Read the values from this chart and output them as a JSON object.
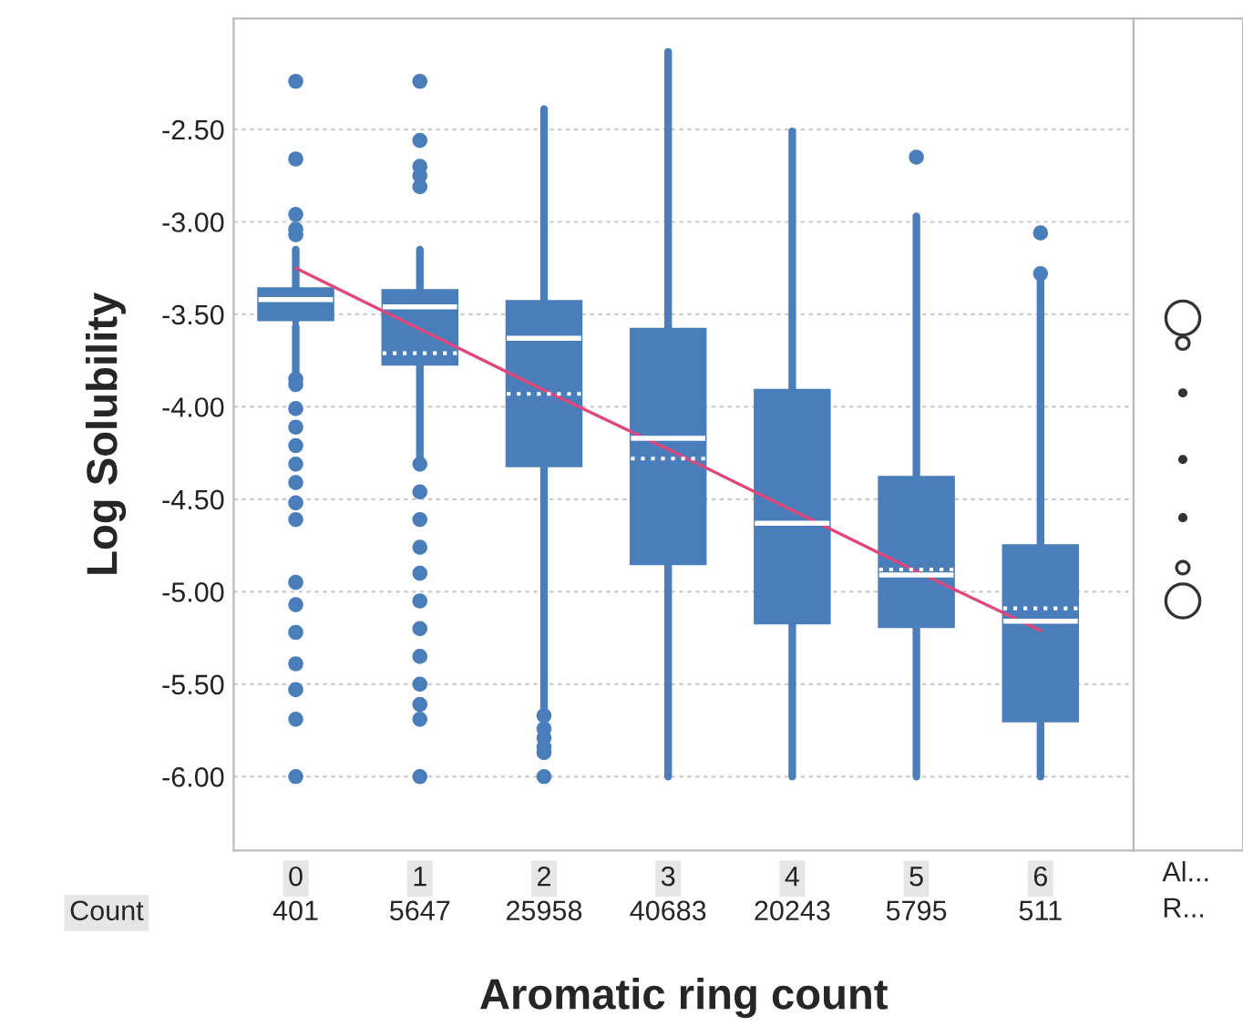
{
  "chart_data": {
    "type": "box",
    "xlabel": "Aromatic ring count",
    "ylabel": "Log Solubility",
    "categories": [
      "0",
      "1",
      "2",
      "3",
      "4",
      "5",
      "6"
    ],
    "ylim": [
      -6.4,
      -1.9
    ],
    "yticks": [
      {
        "value": -2.5,
        "label": "-2.50"
      },
      {
        "value": -3.0,
        "label": "-3.00"
      },
      {
        "value": -3.5,
        "label": "-3.50"
      },
      {
        "value": -4.0,
        "label": "-4.00"
      },
      {
        "value": -4.5,
        "label": "-4.50"
      },
      {
        "value": -5.0,
        "label": "-5.00"
      },
      {
        "value": -5.5,
        "label": "-5.50"
      },
      {
        "value": -6.0,
        "label": "-6.00"
      }
    ],
    "grid": "y",
    "legend": false,
    "series": [
      {
        "color": "#4a7ebb",
        "boxes": [
          {
            "low": -3.82,
            "q1": -3.53,
            "median": -3.42,
            "q3": -3.36,
            "high": -3.15,
            "mean": -3.55,
            "outliers": [
              -2.24,
              -2.66,
              -2.96,
              -3.04,
              -3.07,
              -3.85,
              -3.88,
              -4.01,
              -4.11,
              -4.21,
              -4.31,
              -4.41,
              -4.52,
              -4.61,
              -4.95,
              -5.07,
              -5.22,
              -5.39,
              -5.53,
              -5.69,
              -6.0
            ]
          },
          {
            "low": -4.28,
            "q1": -3.77,
            "median": -3.46,
            "q3": -3.37,
            "high": -3.15,
            "mean": -3.71,
            "outliers": [
              -2.24,
              -2.56,
              -2.7,
              -2.75,
              -2.81,
              -4.31,
              -4.46,
              -4.61,
              -4.76,
              -4.9,
              -5.05,
              -5.2,
              -5.35,
              -5.5,
              -5.61,
              -5.69,
              -6.0
            ]
          },
          {
            "low": -5.63,
            "q1": -4.32,
            "median": -3.63,
            "q3": -3.43,
            "high": -2.39,
            "mean": -3.93,
            "outliers": [
              -5.67,
              -5.74,
              -5.79,
              -5.84,
              -5.87,
              -6.0
            ]
          },
          {
            "low": -6.0,
            "q1": -4.85,
            "median": -4.17,
            "q3": -3.58,
            "high": -2.08,
            "mean": -4.28
          },
          {
            "low": -6.0,
            "q1": -5.17,
            "median": -4.63,
            "q3": -3.91,
            "high": -2.51,
            "mean": -4.63
          },
          {
            "low": -6.0,
            "q1": -5.19,
            "median": -4.91,
            "q3": -4.38,
            "high": -2.97,
            "mean": -4.88,
            "outliers": [
              -2.65
            ]
          },
          {
            "low": -6.0,
            "q1": -5.7,
            "median": -5.16,
            "q3": -4.75,
            "high": -3.29,
            "mean": -5.09,
            "outliers": [
              -3.06,
              -3.28
            ]
          }
        ]
      },
      {
        "type": "line",
        "color": "#e0457b",
        "values": [
          -3.25,
          -3.58,
          -3.91,
          -4.23,
          -4.56,
          -4.89,
          -5.21
        ]
      }
    ],
    "annotations": [
      "Count",
      "401",
      "5647",
      "25958",
      "40683",
      "20243",
      "5795",
      "511",
      "Al...",
      "R..."
    ]
  }
}
